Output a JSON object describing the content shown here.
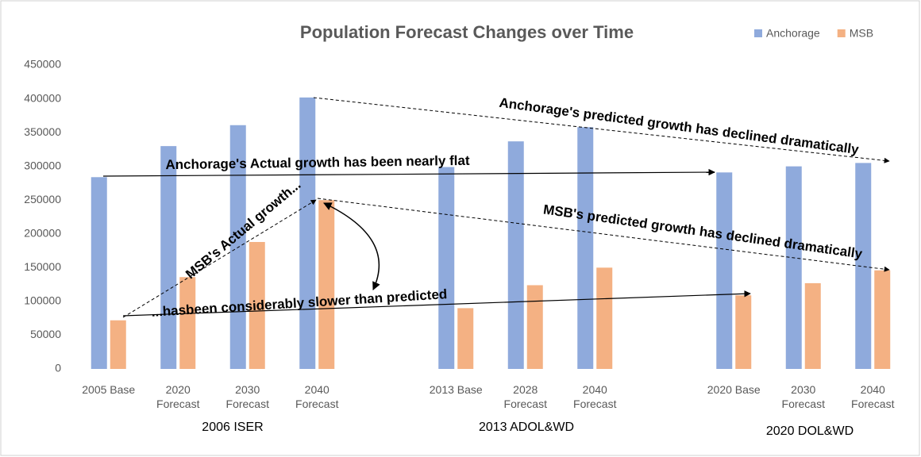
{
  "chart_data": {
    "type": "bar",
    "title": "Population Forecast Changes over Time",
    "categories": [
      "2005 Base",
      "2020 Forecast",
      "2030 Forecast",
      "2040 Forecast",
      null,
      "2013 Base",
      "2028 Forecast",
      "2040 Forecast",
      null,
      "2020 Base",
      "2030 Forecast",
      "2040 Forecast"
    ],
    "series": [
      {
        "name": "Anchorage",
        "color": "#8faadc",
        "values": [
          284000,
          330000,
          361000,
          402000,
          null,
          299000,
          337000,
          358000,
          null,
          291000,
          300000,
          305000
        ]
      },
      {
        "name": "MSB",
        "color": "#f4b183",
        "values": [
          72000,
          136000,
          188000,
          250000,
          null,
          90000,
          124000,
          150000,
          null,
          109000,
          127000,
          146000
        ]
      }
    ],
    "groups": [
      "2006 ISER",
      "2013 ADOL&WD",
      "2020 DOL&WD"
    ],
    "annotations": [
      "Anchorage's predicted growth has declined dramatically",
      "Anchorage's Actual growth has been nearly flat",
      "MSB's predicted growth has declined dramatically",
      "MSB's Actual growth...",
      "...hasbeen considerably slower than predicted"
    ],
    "ylim": [
      0,
      450000
    ],
    "yticks": [
      0,
      50000,
      100000,
      150000,
      200000,
      250000,
      300000,
      350000,
      400000,
      450000
    ],
    "grid": false,
    "legend": "top-right"
  }
}
